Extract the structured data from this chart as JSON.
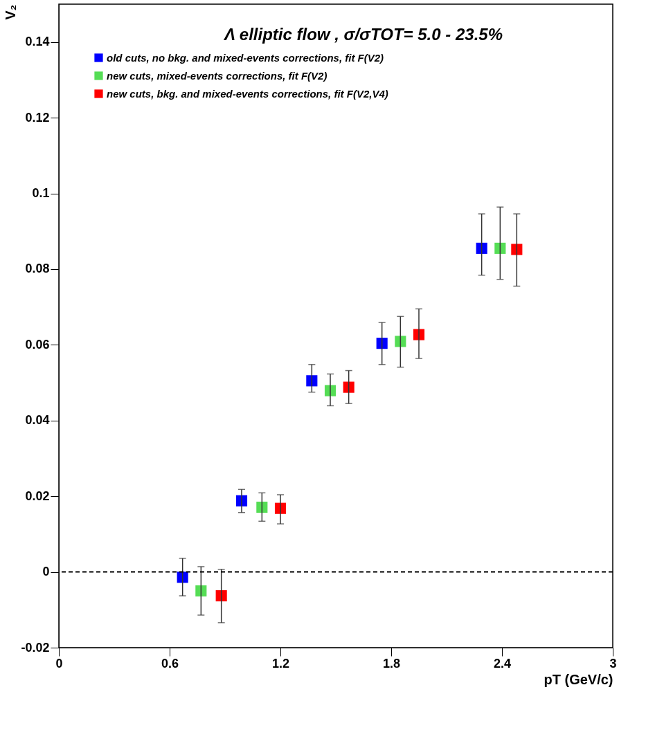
{
  "chart_data": {
    "type": "scatter",
    "title": "Λ elliptic flow ,  σ/σTOT= 5.0 - 23.5%",
    "xlabel": "pT (GeV/c)",
    "ylabel": "V₂",
    "xlim": [
      0,
      3
    ],
    "ylim": [
      -0.02,
      0.15
    ],
    "xticks": [
      0,
      0.6,
      1.2,
      1.8,
      2.4,
      3
    ],
    "yticks": [
      -0.02,
      0,
      0.02,
      0.04,
      0.06,
      0.08,
      0.1,
      0.12,
      0.14
    ],
    "grid": false,
    "legend": "top left",
    "marker": "square",
    "ref_lines": [
      {
        "axis": "y",
        "value": 0,
        "line_style": "dashed",
        "color": "#000000"
      }
    ],
    "series": [
      {
        "name": "old cuts,    no bkg. and mixed-events corrections,    fit F(V2)",
        "color": "#0000ff",
        "x": [
          0.67,
          0.99,
          1.37,
          1.75,
          2.29
        ],
        "values": [
          -0.0014,
          0.0188,
          0.0505,
          0.0604,
          0.0855
        ],
        "errors": [
          [
            -0.0063,
            0.0036
          ],
          [
            0.0157,
            0.0218
          ],
          [
            0.0475,
            0.0548
          ],
          [
            0.0548,
            0.0659
          ],
          [
            0.0784,
            0.0946
          ]
        ]
      },
      {
        "name": "new cuts,    mixed-events corrections,                          fit F(V2)",
        "color": "#55dd55",
        "x": [
          0.77,
          1.1,
          1.47,
          1.85,
          2.39
        ],
        "values": [
          -0.005,
          0.0171,
          0.0479,
          0.0609,
          0.0855
        ],
        "errors": [
          [
            -0.0114,
            0.0014
          ],
          [
            0.0134,
            0.0209
          ],
          [
            0.0439,
            0.0523
          ],
          [
            0.0541,
            0.0675
          ],
          [
            0.0773,
            0.0964
          ]
        ]
      },
      {
        "name": "new cuts,    bkg. and mixed-events corrections,      fit F(V2,V4)",
        "color": "#ff0000",
        "x": [
          0.88,
          1.2,
          1.57,
          1.95,
          2.48
        ],
        "values": [
          -0.0063,
          0.0168,
          0.0488,
          0.0627,
          0.0852
        ],
        "errors": [
          [
            -0.0134,
            0.0007
          ],
          [
            0.0127,
            0.0204
          ],
          [
            0.0445,
            0.0532
          ],
          [
            0.0564,
            0.0695
          ],
          [
            0.0755,
            0.0946
          ]
        ]
      }
    ]
  }
}
